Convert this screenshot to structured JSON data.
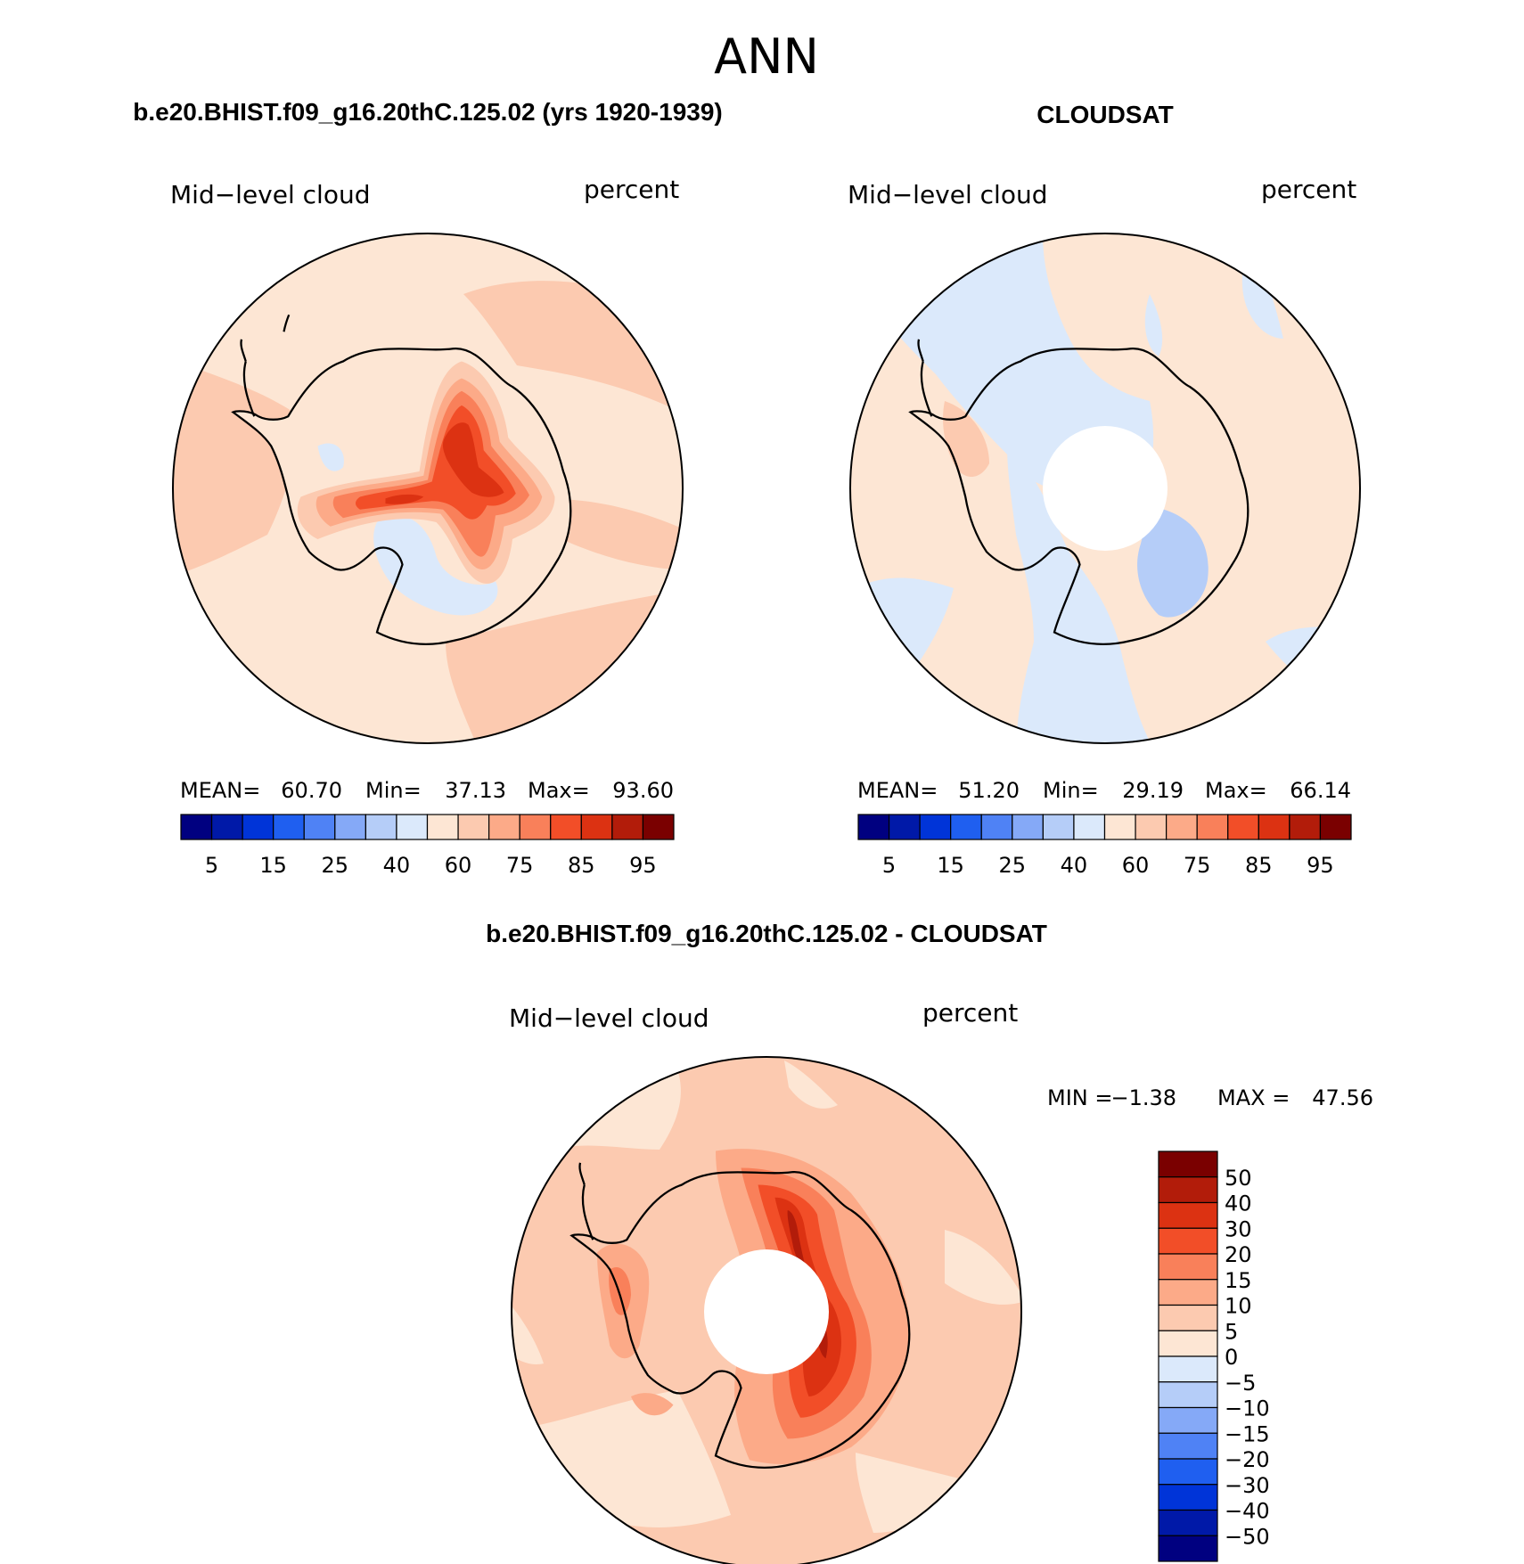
{
  "figure_title": "ANN",
  "colors": {
    "absolute": [
      "#000080",
      "#0019a8",
      "#0034d8",
      "#1f5ff0",
      "#4f82f5",
      "#85a9f7",
      "#b5cdf8",
      "#dbe9fb",
      "#fde6d4",
      "#fccab0",
      "#fcaa88",
      "#f9805a",
      "#f24e28",
      "#dc3212",
      "#b21c0a",
      "#7a0000"
    ],
    "difference": [
      "#000080",
      "#0019a8",
      "#0034d8",
      "#1f5ff0",
      "#4f82f5",
      "#85a9f7",
      "#b5cdf8",
      "#dbe9fb",
      "#fde6d4",
      "#fccab0",
      "#fcaa88",
      "#f9805a",
      "#f24e28",
      "#dc3212",
      "#b21c0a",
      "#7a0000"
    ],
    "land_outline": "#000000",
    "pole_mask": "#ffffff"
  },
  "panels": [
    {
      "id": "model",
      "title": "b.e20.BHIST.f09_g16.20thC.125.02 (yrs 1920-1939)",
      "left_label": "Mid−level cloud",
      "right_label": "percent",
      "pole_hole": false,
      "stats": {
        "mean_label": "MEAN=",
        "mean": "60.70",
        "min_label": "Min=",
        "min": "37.13",
        "max_label": "Max=",
        "max": "93.60"
      },
      "colorbar_ticks": [
        "5",
        "15",
        "25",
        "40",
        "60",
        "75",
        "85",
        "95"
      ],
      "field_index": {
        "background": 8,
        "ocean_bands": [
          9,
          10
        ],
        "land": [
          8,
          9,
          10,
          11,
          12,
          13
        ],
        "low": 7
      }
    },
    {
      "id": "obs",
      "title": "CLOUDSAT",
      "left_label": "Mid−level cloud",
      "right_label": "percent",
      "pole_hole": true,
      "stats": {
        "mean_label": "MEAN=",
        "mean": "51.20",
        "min_label": "Min=",
        "min": "29.19",
        "max_label": "Max=",
        "max": "66.14"
      },
      "colorbar_ticks": [
        "5",
        "15",
        "25",
        "40",
        "60",
        "75",
        "85",
        "95"
      ],
      "field_index": {
        "background": 8,
        "low": 7,
        "lower": 6,
        "bright": 9
      }
    },
    {
      "id": "diff",
      "title": "b.e20.BHIST.f09_g16.20thC.125.02 - CLOUDSAT",
      "left_label": "Mid−level cloud",
      "right_label": "percent",
      "pole_hole": true,
      "stats": {
        "min_label": "MIN =",
        "min": "−1.38",
        "max_label": "MAX =",
        "max": "47.56"
      },
      "colorbar_ticks": [
        "50",
        "40",
        "30",
        "20",
        "15",
        "10",
        "5",
        "0",
        "−5",
        "−10",
        "−15",
        "−20",
        "−30",
        "−40",
        "−50"
      ],
      "field_index": {
        "background": 9,
        "light": 8,
        "land": [
          10,
          11,
          12,
          13,
          14
        ]
      }
    }
  ]
}
